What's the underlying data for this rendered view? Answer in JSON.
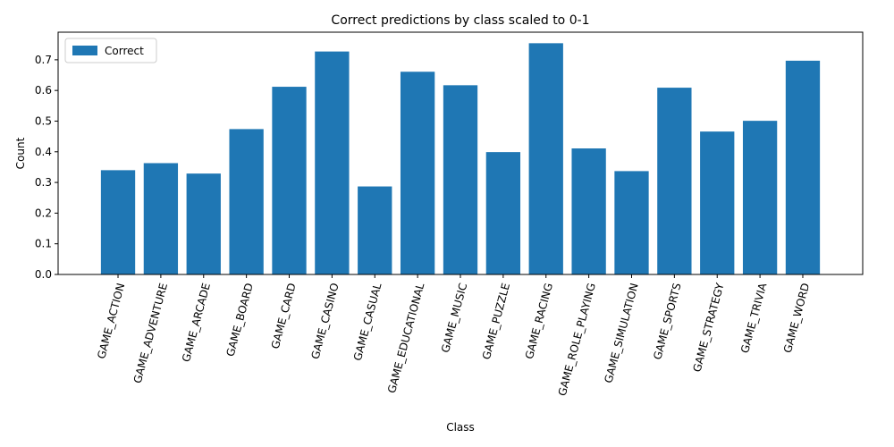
{
  "chart_data": {
    "type": "bar",
    "title": "Correct predictions by class scaled to 0-1",
    "xlabel": "Class",
    "ylabel": "Count",
    "ylim": [
      0,
      0.79
    ],
    "yticks": [
      0.0,
      0.1,
      0.2,
      0.3,
      0.4,
      0.5,
      0.6,
      0.7
    ],
    "ytick_labels": [
      "0.0",
      "0.1",
      "0.2",
      "0.3",
      "0.4",
      "0.5",
      "0.6",
      "0.7"
    ],
    "categories": [
      "GAME_ACTION",
      "GAME_ADVENTURE",
      "GAME_ARCADE",
      "GAME_BOARD",
      "GAME_CARD",
      "GAME_CASINO",
      "GAME_CASUAL",
      "GAME_EDUCATIONAL",
      "GAME_MUSIC",
      "GAME_PUZZLE",
      "GAME_RACING",
      "GAME_ROLE_PLAYING",
      "GAME_SIMULATION",
      "GAME_SPORTS",
      "GAME_STRATEGY",
      "GAME_TRIVIA",
      "GAME_WORD"
    ],
    "series": [
      {
        "name": "Correct",
        "color": "#1f77b4",
        "values": [
          0.34,
          0.363,
          0.329,
          0.474,
          0.612,
          0.727,
          0.287,
          0.661,
          0.617,
          0.399,
          0.754,
          0.411,
          0.337,
          0.609,
          0.466,
          0.501,
          0.697
        ]
      }
    ],
    "grid": false,
    "legend": {
      "placement": "upper-left",
      "entries": [
        "Correct"
      ]
    },
    "xtick_rotation_deg": 75
  }
}
